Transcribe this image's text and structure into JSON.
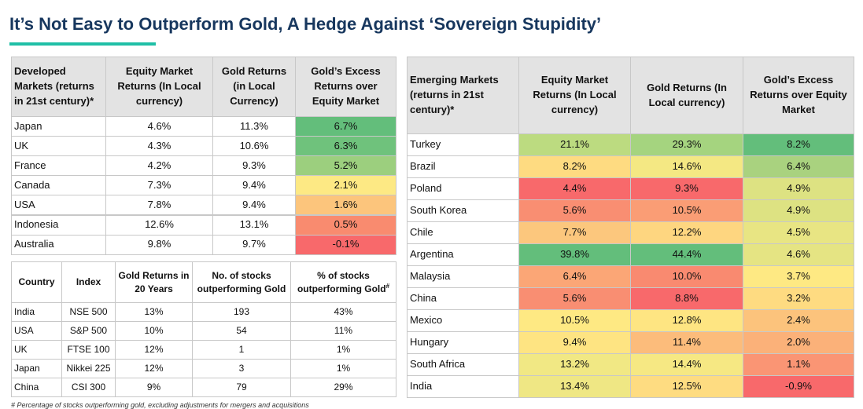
{
  "header": {
    "title": "It’s Not Easy to Outperform Gold, A Hedge Against ‘Sovereign Stupidity’"
  },
  "developed": {
    "headers": [
      "Developed Markets (returns in 21st century)*",
      "Equity Market Returns (In Local currency)",
      "Gold Returns (in Local Currency)",
      "Gold’s Excess Returns over Equity Market"
    ],
    "rows": [
      [
        "Japan",
        "4.6%",
        "11.3%",
        "6.7%"
      ],
      [
        "UK",
        "4.3%",
        "10.6%",
        "6.3%"
      ],
      [
        "France",
        "4.2%",
        "9.3%",
        "5.2%"
      ],
      [
        "Canada",
        "7.3%",
        "9.4%",
        "2.1%"
      ],
      [
        "USA",
        "7.8%",
        "9.4%",
        "1.6%"
      ],
      [
        "Indonesia",
        "12.6%",
        "13.1%",
        "0.5%"
      ],
      [
        "Australia",
        "9.8%",
        "9.7%",
        "-0.1%"
      ]
    ],
    "color_columns": [
      3
    ],
    "colors": [
      [
        "#63be7b"
      ],
      [
        "#6fc27c"
      ],
      [
        "#9ccf7e"
      ],
      [
        "#fde984"
      ],
      [
        "#fcc57c"
      ],
      [
        "#f98b6f"
      ],
      [
        "#f8696b"
      ]
    ]
  },
  "stocks": {
    "headers": [
      "Country",
      "Index",
      "Gold Returns in 20 Years",
      "No. of stocks outperforming Gold",
      "% of stocks outperforming Gold"
    ],
    "header_mark": "#",
    "rows": [
      [
        "India",
        "NSE 500",
        "13%",
        "193",
        "43%"
      ],
      [
        "USA",
        "S&P 500",
        "10%",
        "54",
        "11%"
      ],
      [
        "UK",
        "FTSE 100",
        "12%",
        "1",
        "1%"
      ],
      [
        "Japan",
        "Nikkei 225",
        "12%",
        "3",
        "1%"
      ],
      [
        "China",
        "CSI 300",
        "9%",
        "79",
        "29%"
      ]
    ],
    "footnote": "# Percentage of stocks outperforming gold, excluding adjustments for mergers and acquisitions"
  },
  "emerging": {
    "headers": [
      "Emerging Markets (returns in 21st century)*",
      "Equity Market Returns (In Local currency)",
      "Gold Returns (In Local currency)",
      "Gold’s Excess Returns over Equity Market"
    ],
    "rows": [
      [
        "Turkey",
        "21.1%",
        "29.3%",
        "8.2%"
      ],
      [
        "Brazil",
        "8.2%",
        "14.6%",
        "6.4%"
      ],
      [
        "Poland",
        "4.4%",
        "9.3%",
        "4.9%"
      ],
      [
        "South Korea",
        "5.6%",
        "10.5%",
        "4.9%"
      ],
      [
        "Chile",
        "7.7%",
        "12.2%",
        "4.5%"
      ],
      [
        "Argentina",
        "39.8%",
        "44.4%",
        "4.6%"
      ],
      [
        "Malaysia",
        "6.4%",
        "10.0%",
        "3.7%"
      ],
      [
        "China",
        "5.6%",
        "8.8%",
        "3.2%"
      ],
      [
        "Mexico",
        "10.5%",
        "12.8%",
        "2.4%"
      ],
      [
        "Hungary",
        "9.4%",
        "11.4%",
        "2.0%"
      ],
      [
        "South Africa",
        "13.2%",
        "14.4%",
        "1.1%"
      ],
      [
        "India",
        "13.4%",
        "12.5%",
        "-0.9%"
      ]
    ],
    "color_columns": [
      1,
      2,
      3
    ],
    "colors": [
      [
        "#bcdb80",
        "#a5d47f",
        "#63be7b"
      ],
      [
        "#fedb81",
        "#f4e883",
        "#a9d27f"
      ],
      [
        "#f8696b",
        "#f8696b",
        "#dde282"
      ],
      [
        "#f98e72",
        "#fa9d75",
        "#dde282"
      ],
      [
        "#fcc77d",
        "#fed680",
        "#e8e583"
      ],
      [
        "#63be7b",
        "#63be7b",
        "#e5e483"
      ],
      [
        "#fba676",
        "#f98a70",
        "#fee983"
      ],
      [
        "#f98e72",
        "#f8696b",
        "#fedb81"
      ],
      [
        "#fee983",
        "#fee582",
        "#fcc37c"
      ],
      [
        "#fee482",
        "#fcbc7b",
        "#fbb179"
      ],
      [
        "#f1e884",
        "#f6e883",
        "#fa9574"
      ],
      [
        "#efe784",
        "#fedc81",
        "#f8696b"
      ]
    ]
  }
}
